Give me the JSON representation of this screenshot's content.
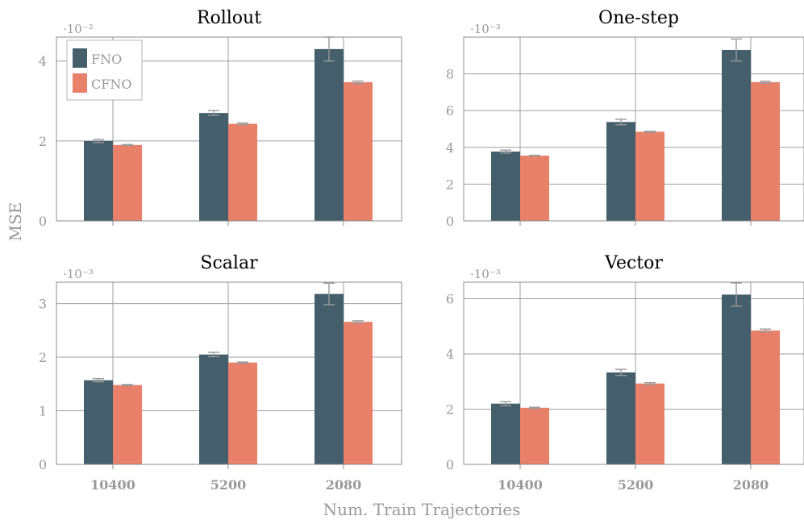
{
  "figure": {
    "ylabel": "MSE",
    "xlabel": "Num. Train Trajectories",
    "legend": [
      "FNO",
      "CFNO"
    ]
  },
  "colors": {
    "FNO": "#445e6b",
    "CFNO": "#e8806a",
    "error_bar": "#9a9a9a",
    "grid": "#9e9e9e",
    "axis_text": "#999999"
  },
  "chart_data": [
    {
      "type": "bar",
      "title": "Rollout",
      "categories": [
        "10400",
        "5200",
        "2080"
      ],
      "scale_label": "·10⁻²",
      "ylim": [
        0,
        4.6
      ],
      "yticks": [
        0,
        2,
        4
      ],
      "legend_position": "top-left",
      "grid": true,
      "series": [
        {
          "name": "FNO",
          "values": [
            2.0,
            2.7,
            4.3
          ],
          "errors": [
            0.04,
            0.06,
            0.3
          ]
        },
        {
          "name": "CFNO",
          "values": [
            1.9,
            2.43,
            3.47
          ],
          "errors": [
            0.01,
            0.02,
            0.03
          ]
        }
      ]
    },
    {
      "type": "bar",
      "title": "One-step",
      "categories": [
        "10400",
        "5200",
        "2080"
      ],
      "scale_label": "·10⁻³",
      "ylim": [
        0,
        10.0
      ],
      "yticks": [
        0,
        2,
        4,
        6,
        8
      ],
      "grid": true,
      "series": [
        {
          "name": "FNO",
          "values": [
            3.77,
            5.38,
            9.3
          ],
          "errors": [
            0.08,
            0.15,
            0.6
          ]
        },
        {
          "name": "CFNO",
          "values": [
            3.55,
            4.85,
            7.55
          ],
          "errors": [
            0.02,
            0.03,
            0.05
          ]
        }
      ]
    },
    {
      "type": "bar",
      "title": "Scalar",
      "categories": [
        "10400",
        "5200",
        "2080"
      ],
      "scale_label": "·10⁻³",
      "ylim": [
        0,
        3.4
      ],
      "yticks": [
        0,
        1,
        2,
        3
      ],
      "grid": true,
      "series": [
        {
          "name": "FNO",
          "values": [
            1.57,
            2.05,
            3.18
          ],
          "errors": [
            0.03,
            0.04,
            0.2
          ]
        },
        {
          "name": "CFNO",
          "values": [
            1.48,
            1.9,
            2.66
          ],
          "errors": [
            0.01,
            0.01,
            0.02
          ]
        }
      ]
    },
    {
      "type": "bar",
      "title": "Vector",
      "categories": [
        "10400",
        "5200",
        "2080"
      ],
      "scale_label": "·10⁻³",
      "ylim": [
        0,
        6.6
      ],
      "yticks": [
        0,
        2,
        4,
        6
      ],
      "grid": true,
      "series": [
        {
          "name": "FNO",
          "values": [
            2.2,
            3.33,
            6.15
          ],
          "errors": [
            0.07,
            0.11,
            0.42
          ]
        },
        {
          "name": "CFNO",
          "values": [
            2.05,
            2.93,
            4.85
          ],
          "errors": [
            0.02,
            0.03,
            0.05
          ]
        }
      ]
    }
  ]
}
